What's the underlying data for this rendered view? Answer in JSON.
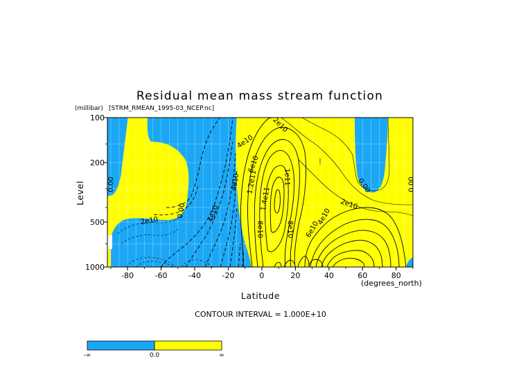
{
  "chart_data": {
    "type": "contour",
    "title": "Residual mean mass stream function",
    "subtitle": "[STRM_RMEAN_1995-03_NCEP.nc]",
    "xlabel": "Latitude",
    "x_units": "(degrees_north)",
    "ylabel": "Level",
    "y_units": "(millibar)",
    "xlim": [
      -92,
      90
    ],
    "ylim": [
      1000,
      100
    ],
    "y_scale": "log",
    "x_ticks": [
      "-80",
      "-60",
      "-40",
      "-20",
      "0",
      "20",
      "40",
      "60",
      "80"
    ],
    "y_ticks": [
      "100",
      "200",
      "500",
      "1000"
    ],
    "contour_interval_text": "CONTOUR INTERVAL = 1.000E+10",
    "fill_colors": {
      "negative": "#1ba7f5",
      "positive": "#ffff00"
    },
    "contour_labels": [
      {
        "text": "0.00",
        "lat": -90,
        "p": 280,
        "rot": -90
      },
      {
        "text": "0.00",
        "lat": -48,
        "p": 420,
        "rot": -80
      },
      {
        "text": "4e10",
        "lat": -29,
        "p": 440,
        "rot": -70
      },
      {
        "text": "2e10",
        "lat": -67,
        "p": 490,
        "rot": -10
      },
      {
        "text": "4e10",
        "lat": -16,
        "p": 270,
        "rot": -80
      },
      {
        "text": "4e10",
        "lat": -10,
        "p": 145,
        "rot": -35
      },
      {
        "text": "2e10",
        "lat": 11,
        "p": 112,
        "rot": 45
      },
      {
        "text": "6e10",
        "lat": -5,
        "p": 205,
        "rot": -70
      },
      {
        "text": "1.2e11",
        "lat": -6,
        "p": 270,
        "rot": -80
      },
      {
        "text": "1e11",
        "lat": 15,
        "p": 250,
        "rot": 90
      },
      {
        "text": "1.4e11",
        "lat": 2,
        "p": 350,
        "rot": -80
      },
      {
        "text": "8e10",
        "lat": -1,
        "p": 560,
        "rot": 90
      },
      {
        "text": "8e10",
        "lat": 17,
        "p": 560,
        "rot": 90
      },
      {
        "text": "0.00",
        "lat": 61,
        "p": 285,
        "rot": 55
      },
      {
        "text": "2e10",
        "lat": 52,
        "p": 380,
        "rot": 20
      },
      {
        "text": "4e10",
        "lat": 37,
        "p": 460,
        "rot": -60
      },
      {
        "text": "6e10",
        "lat": 30,
        "p": 560,
        "rot": -60
      },
      {
        "text": "0.00",
        "lat": 89,
        "p": 280,
        "rot": -90
      }
    ],
    "colorbar": {
      "labels": [
        "-∞",
        "0.0",
        "∞"
      ],
      "colors": [
        "#1ba7f5",
        "#ffff00"
      ]
    }
  }
}
